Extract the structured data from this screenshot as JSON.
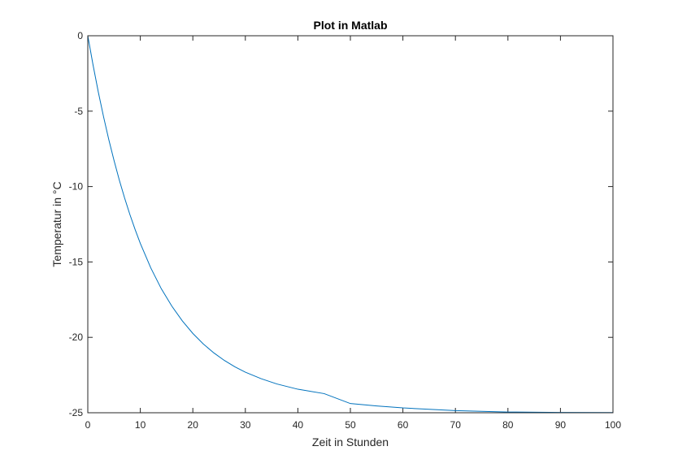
{
  "chart_data": {
    "type": "line",
    "title": "Plot in Matlab",
    "xlabel": "Zeit in Stunden",
    "ylabel": "Temperatur in °C",
    "xlim": [
      0,
      100
    ],
    "ylim": [
      -25,
      0
    ],
    "xticks": [
      0,
      10,
      20,
      30,
      40,
      50,
      60,
      70,
      80,
      90,
      100
    ],
    "yticks": [
      0,
      -5,
      -10,
      -15,
      -20,
      -25
    ],
    "grid": false,
    "box": true,
    "line_color": "#0072BD",
    "series": [
      {
        "x": [
          0,
          1,
          2,
          3,
          4,
          5,
          6,
          7,
          8,
          9,
          10,
          12,
          14,
          16,
          18,
          20,
          22,
          24,
          26,
          28,
          30,
          33,
          36,
          40,
          45,
          50,
          55,
          60,
          70,
          80,
          90,
          100
        ],
        "y": [
          0,
          -1.94,
          -3.73,
          -5.37,
          -6.89,
          -8.28,
          -9.57,
          -10.75,
          -11.84,
          -12.84,
          -13.77,
          -15.4,
          -16.78,
          -17.93,
          -18.91,
          -19.74,
          -20.44,
          -21.03,
          -21.53,
          -21.95,
          -22.31,
          -22.74,
          -23.09,
          -23.44,
          -23.73,
          -24.39,
          -24.55,
          -24.68,
          -24.86,
          -24.95,
          -24.98,
          -24.99
        ]
      }
    ]
  }
}
